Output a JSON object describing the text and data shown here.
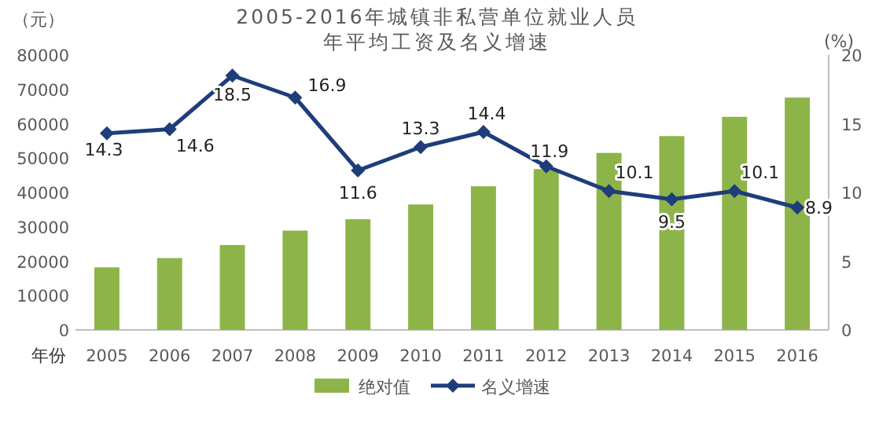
{
  "chart_data": {
    "type": "bar",
    "title": "2005-2016年城镇非私营单位就业人员",
    "subtitle": "年平均工资及名义增速",
    "xlabel": "年份",
    "ylabel": "（元）",
    "y2label": "(%)",
    "categories": [
      "2005",
      "2006",
      "2007",
      "2008",
      "2009",
      "2010",
      "2011",
      "2012",
      "2013",
      "2014",
      "2015",
      "2016"
    ],
    "series": [
      {
        "name": "绝对值",
        "color": "#8db449",
        "values": [
          18200,
          20900,
          24700,
          28900,
          32200,
          36500,
          41800,
          46800,
          51500,
          56400,
          62000,
          67600
        ]
      },
      {
        "name": "名义增速",
        "type": "line",
        "axis": "y2",
        "color": "#1f3d7a",
        "marker": "diamond",
        "data_labels": true,
        "values": [
          14.3,
          14.6,
          18.5,
          16.9,
          11.6,
          13.3,
          14.4,
          11.9,
          10.1,
          9.5,
          10.1,
          8.9
        ]
      }
    ],
    "ylim": [
      0,
      80000
    ],
    "yticks": [
      0,
      10000,
      20000,
      30000,
      40000,
      50000,
      60000,
      70000,
      80000
    ],
    "y2lim": [
      0,
      20
    ],
    "y2ticks": [
      0,
      5,
      10,
      15,
      20
    ],
    "grid": false,
    "legend": "bottom"
  }
}
